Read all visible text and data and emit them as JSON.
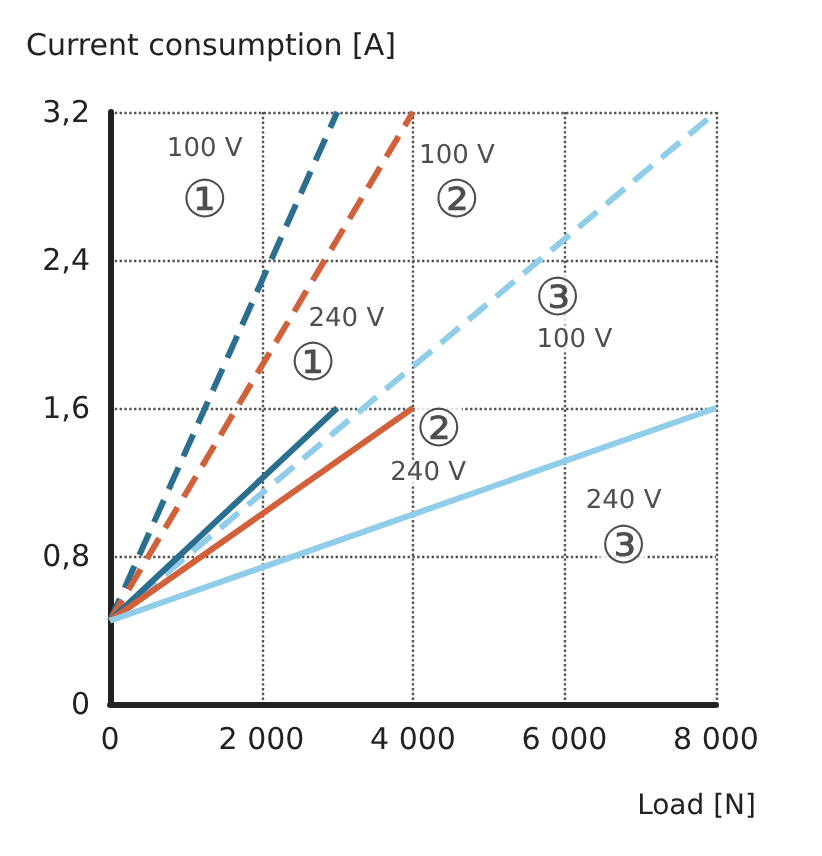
{
  "chart_data": {
    "type": "line",
    "xlabel": "Load [N]",
    "ylabel": "Current consumption [A]",
    "xlim": [
      0,
      8000
    ],
    "ylim": [
      0,
      3.2
    ],
    "xticks": [
      0,
      {
        "value": 2000,
        "label": "2 000"
      },
      {
        "value": 4000,
        "label": "4 000"
      },
      {
        "value": 6000,
        "label": "6 000"
      },
      {
        "value": 8000,
        "label": "8 000"
      }
    ],
    "yticks": [
      0,
      {
        "value": 0.8,
        "label": "0,8"
      },
      {
        "value": 1.6,
        "label": "1,6"
      },
      {
        "value": 2.4,
        "label": "2,4"
      },
      {
        "value": 3.2,
        "label": "3,2"
      }
    ],
    "grid": true,
    "marker": "none",
    "series": [
      {
        "color": "#2a6f8f",
        "line_style": "dashed",
        "x": [
          0,
          3000
        ],
        "values": [
          0.45,
          3.2
        ]
      },
      {
        "color": "#d0613a",
        "line_style": "dashed",
        "x": [
          0,
          4000
        ],
        "values": [
          0.45,
          3.2
        ]
      },
      {
        "color": "#90cde8",
        "line_style": "dashed",
        "x": [
          0,
          8000
        ],
        "values": [
          0.45,
          3.2
        ]
      },
      {
        "color": "#2a6f8f",
        "line_style": "solid",
        "x": [
          0,
          3000
        ],
        "values": [
          0.45,
          1.6
        ]
      },
      {
        "color": "#d0613a",
        "line_style": "solid",
        "x": [
          0,
          4000
        ],
        "values": [
          0.45,
          1.6
        ]
      },
      {
        "color": "#90cde8",
        "line_style": "solid",
        "x": [
          0,
          8000
        ],
        "values": [
          0.45,
          1.6
        ]
      }
    ],
    "annotations": [
      {
        "text": "100 V",
        "x": 1250,
        "y": 3.0
      },
      {
        "text": "①",
        "x": 1250,
        "y": 2.72
      },
      {
        "text": "100 V",
        "x": 4580,
        "y": 2.96
      },
      {
        "text": "②",
        "x": 4580,
        "y": 2.72
      },
      {
        "text": "③",
        "x": 5910,
        "y": 2.19
      },
      {
        "text": "100 V",
        "x": 6130,
        "y": 1.97
      },
      {
        "text": "240 V",
        "x": 3120,
        "y": 2.08
      },
      {
        "text": "①",
        "x": 2680,
        "y": 1.84
      },
      {
        "text": "②",
        "x": 4340,
        "y": 1.48
      },
      {
        "text": "240 V",
        "x": 4200,
        "y": 1.25
      },
      {
        "text": "240 V",
        "x": 6780,
        "y": 1.1
      },
      {
        "text": "③",
        "x": 6780,
        "y": 0.85
      }
    ]
  }
}
